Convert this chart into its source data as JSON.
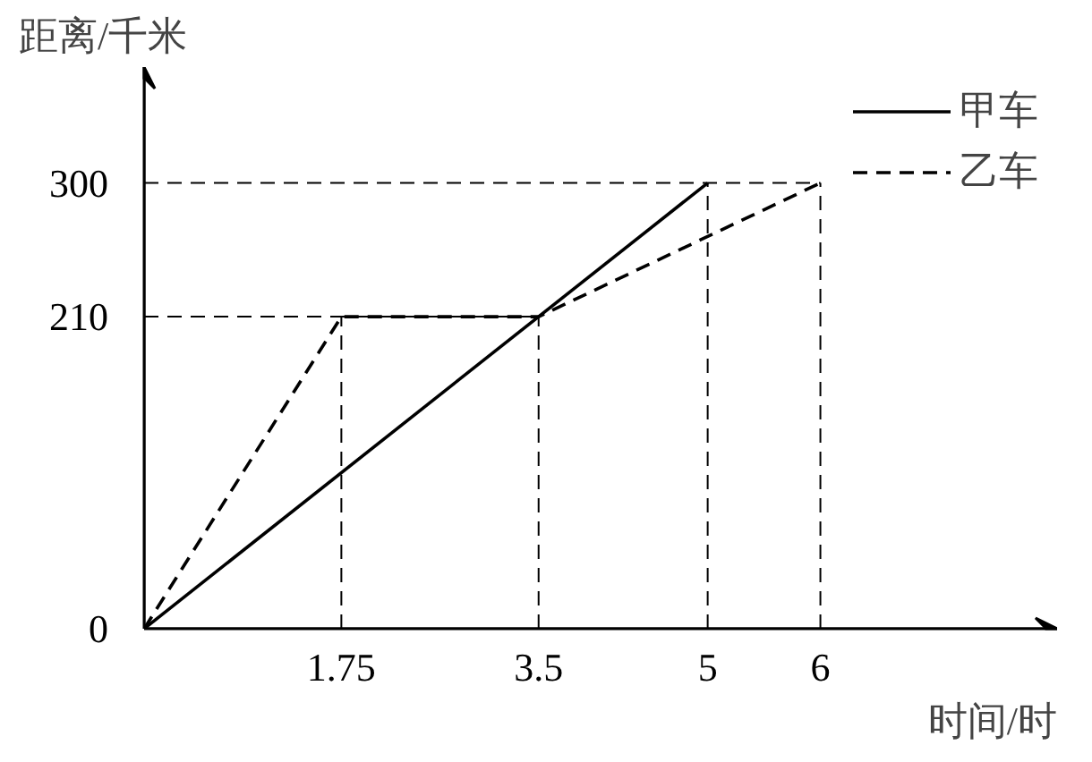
{
  "chart_data": {
    "type": "line",
    "xlabel": "时间/时",
    "ylabel": "距离/千米",
    "xlim": [
      0,
      8.1
    ],
    "ylim": [
      0,
      378
    ],
    "xticks": [
      1.75,
      3.5,
      5,
      6
    ],
    "yticks": [
      0,
      210,
      300
    ],
    "series": [
      {
        "name": "甲车",
        "color": "#000000",
        "x": [
          0,
          5
        ],
        "values": [
          0,
          300
        ],
        "line_style": "solid"
      },
      {
        "name": "乙车",
        "color": "#000000",
        "x": [
          0,
          1.75,
          3.5,
          6
        ],
        "values": [
          0,
          210,
          210,
          300
        ],
        "line_style": "dashed"
      }
    ],
    "ref_lines": [
      {
        "axis": "y",
        "value": 210,
        "line_style": "dashed"
      },
      {
        "axis": "y",
        "value": 300,
        "line_style": "dashed"
      },
      {
        "axis": "x",
        "value": 1.75,
        "line_style": "dashed"
      },
      {
        "axis": "x",
        "value": 3.5,
        "line_style": "dashed"
      },
      {
        "axis": "x",
        "value": 5,
        "line_style": "dashed"
      },
      {
        "axis": "x",
        "value": 6,
        "line_style": "dashed"
      }
    ],
    "grid": false,
    "legend": "top right",
    "marker": "none"
  }
}
